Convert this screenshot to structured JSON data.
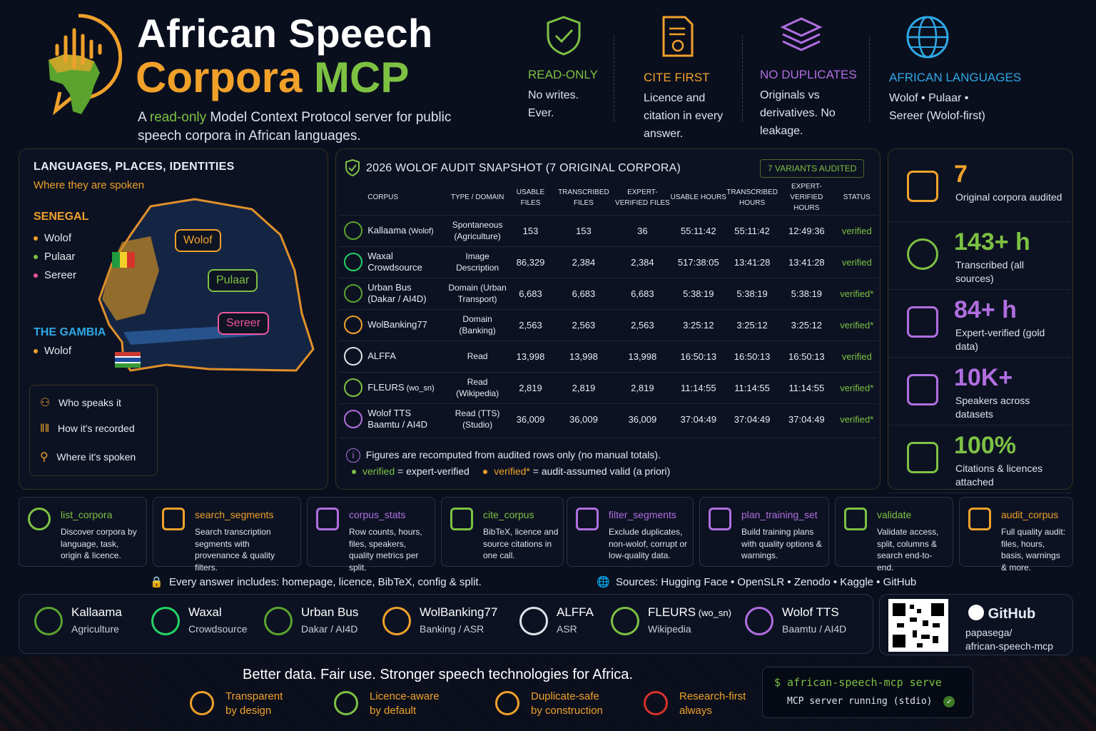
{
  "header": {
    "title_line1": "African Speech",
    "title_corpora": "Corpora",
    "title_mcp": "MCP",
    "subtitle_a": "A ",
    "subtitle_ro": "read-only",
    "subtitle_b": " Model Context Protocol server for public speech corpora in African languages."
  },
  "pillars": [
    {
      "title": "READ-ONLY",
      "text": "No writes. Ever.",
      "icon": "shield-check-icon"
    },
    {
      "title": "CITE FIRST",
      "text": "Licence and citation in every answer.",
      "icon": "certificate-icon"
    },
    {
      "title": "NO DUPLICATES",
      "text": "Originals vs derivatives. No leakage.",
      "icon": "layers-icon"
    },
    {
      "title": "AFRICAN LANGUAGES",
      "text": "Wolof  •  Pulaar  •  Sereer (Wolof-first)",
      "icon": "globe-icon"
    }
  ],
  "languages_panel": {
    "title": "LANGUAGES, PLACES, IDENTITIES",
    "subtitle": "Where they are spoken",
    "senegal": {
      "name": "SENEGAL",
      "langs": [
        "Wolof",
        "Pulaar",
        "Sereer"
      ]
    },
    "gambia": {
      "name": "THE GAMBIA",
      "langs": [
        "Wolof"
      ]
    },
    "bubbles": [
      "Wolof",
      "Pulaar",
      "Sereer"
    ],
    "legend": [
      "Who speaks it",
      "How it's recorded",
      "Where it's spoken"
    ]
  },
  "audit": {
    "title": "2026 WOLOF AUDIT SNAPSHOT (7 ORIGINAL CORPORA)",
    "badge": "7 VARIANTS AUDITED",
    "columns": [
      "CORPUS",
      "TYPE / DOMAIN",
      "USABLE FILES",
      "TRANSCRIBED FILES",
      "EXPERT-VERIFIED FILES",
      "USABLE HOURS",
      "TRANSCRIBED HOURS",
      "EXPERT-VERIFIED HOURS",
      "STATUS"
    ],
    "rows": [
      {
        "name": "Kallaama",
        "sub": " (Wolof)",
        "type": "Spontaneous (Agriculture)",
        "uf": "153",
        "tf": "153",
        "ef": "36",
        "uh": "55:11:42",
        "th": "55:11:42",
        "eh": "12:49:36",
        "status": "verified"
      },
      {
        "name": "Waxal",
        "sub": "Crowdsource",
        "type": "Image Description",
        "uf": "86,329",
        "tf": "2,384",
        "ef": "2,384",
        "uh": "517:38:05",
        "th": "13:41:28",
        "eh": "13:41:28",
        "status": "verified"
      },
      {
        "name": "Urban Bus",
        "sub": "(Dakar / AI4D)",
        "type": "Domain (Urban Transport)",
        "uf": "6,683",
        "tf": "6,683",
        "ef": "6,683",
        "uh": "5:38:19",
        "th": "5:38:19",
        "eh": "5:38:19",
        "status": "verified*"
      },
      {
        "name": "WolBanking77",
        "sub": "",
        "type": "Domain (Banking)",
        "uf": "2,563",
        "tf": "2,563",
        "ef": "2,563",
        "uh": "3:25:12",
        "th": "3:25:12",
        "eh": "3:25:12",
        "status": "verified*"
      },
      {
        "name": "ALFFA",
        "sub": "",
        "type": "Read",
        "uf": "13,998",
        "tf": "13,998",
        "ef": "13,998",
        "uh": "16:50:13",
        "th": "16:50:13",
        "eh": "16:50:13",
        "status": "verified"
      },
      {
        "name": "FLEURS",
        "sub": " (wo_sn)",
        "type": "Read (Wikipedia)",
        "uf": "2,819",
        "tf": "2,819",
        "ef": "2,819",
        "uh": "11:14:55",
        "th": "11:14:55",
        "eh": "11:14:55",
        "status": "verified*"
      },
      {
        "name": "Wolof TTS",
        "sub": "Baamtu / AI4D",
        "type": "Read (TTS) (Studio)",
        "uf": "36,009",
        "tf": "36,009",
        "ef": "36,009",
        "uh": "37:04:49",
        "th": "37:04:49",
        "eh": "37:04:49",
        "status": "verified*"
      }
    ],
    "note": "Figures are recomputed from audited rows only (no manual totals).",
    "legend_verified": "verified",
    "legend_verified_desc": " = expert-verified",
    "legend_assumed": "verified*",
    "legend_assumed_desc": " = audit-assumed valid (a priori)"
  },
  "stats": [
    {
      "value": "7",
      "label": "Original corpora audited",
      "color": "#f0a12a"
    },
    {
      "value": "143+ h",
      "label": "Transcribed (all sources)",
      "color": "#7dc143"
    },
    {
      "value": "84+ h",
      "label": "Expert-verified (gold data)",
      "color": "#b06ee0"
    },
    {
      "value": "10K+",
      "label": "Speakers across datasets",
      "color": "#b06ee0"
    },
    {
      "value": "100%",
      "label": "Citations & licences attached",
      "color": "#7dc143"
    }
  ],
  "tools": [
    {
      "name": "list_corpora",
      "desc": "Discover corpora by language, task, origin & licence.",
      "color": "#7dc143"
    },
    {
      "name": "search_segments",
      "desc": "Search transcription segments with provenance & quality filters.",
      "color": "#f0a12a"
    },
    {
      "name": "corpus_stats",
      "desc": "Row counts, hours, files, speakers, quality metrics per split.",
      "color": "#b06ee0"
    },
    {
      "name": "cite_corpus",
      "desc": "BibTeX, licence and source citations in one call.",
      "color": "#7dc143"
    },
    {
      "name": "filter_segments",
      "desc": "Exclude duplicates, non-wolof, corrupt or low-quality data.",
      "color": "#b06ee0"
    },
    {
      "name": "plan_training_set",
      "desc": "Build training plans with quality options & warnings.",
      "color": "#b06ee0"
    },
    {
      "name": "validate",
      "desc": "Validate access, split, columns & search end-to-end.",
      "color": "#7dc143"
    },
    {
      "name": "audit_corpus",
      "desc": "Full quality audit: files, hours, basis, warnings & more.",
      "color": "#f0a12a"
    }
  ],
  "info_line": "Every answer includes: homepage, licence, BibTeX, config & split.",
  "sources_line": "Sources: Hugging Face  •  OpenSLR  •  Zenodo  •  Kaggle  •  GitHub",
  "corpora_strip": [
    {
      "name": "Kallaama",
      "sub": "Agriculture"
    },
    {
      "name": "Waxal",
      "sub": "Crowdsource"
    },
    {
      "name": "Urban Bus",
      "sub": "Dakar / AI4D"
    },
    {
      "name": "WolBanking77",
      "sub": "Banking / ASR"
    },
    {
      "name": "ALFFA",
      "sub": "ASR"
    },
    {
      "name": "FLEURS",
      "name_sub": " (wo_sn)",
      "sub": "Wikipedia"
    },
    {
      "name": "Wolof TTS",
      "sub": "Baamtu / AI4D"
    }
  ],
  "github": {
    "title": "GitHub",
    "repo_line1": "papasega/",
    "repo_line2": "african-speech-mcp"
  },
  "footer": {
    "tagline": "Better data.  Fair use.  Stronger speech technologies for Africa.",
    "tags": [
      {
        "l1": "Transparent",
        "l2": "by design"
      },
      {
        "l1": "Licence-aware",
        "l2": "by default"
      },
      {
        "l1": "Duplicate-safe",
        "l2": "by construction"
      },
      {
        "l1": "Research-first",
        "l2": "always"
      }
    ],
    "cmd": "$ african-speech-mcp serve",
    "cmd_status": "MCP server running (stdio)"
  }
}
